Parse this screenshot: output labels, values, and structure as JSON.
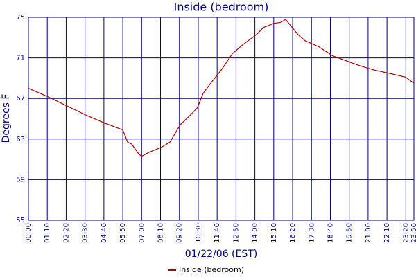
{
  "chart_data": {
    "type": "line",
    "title": "Inside (bedroom)",
    "x_label": "01/22/06 (EST)",
    "y_label": "Degrees F",
    "xlim": [
      0,
      1430
    ],
    "xticks": [
      {
        "value": 0,
        "label": "00:00"
      },
      {
        "value": 70,
        "label": "01:10"
      },
      {
        "value": 140,
        "label": "02:20"
      },
      {
        "value": 210,
        "label": "03:30"
      },
      {
        "value": 280,
        "label": "04:40"
      },
      {
        "value": 350,
        "label": "05:50"
      },
      {
        "value": 420,
        "label": "07:00"
      },
      {
        "value": 490,
        "label": "08:10"
      },
      {
        "value": 560,
        "label": "09:20"
      },
      {
        "value": 630,
        "label": "10:30"
      },
      {
        "value": 700,
        "label": "11:40"
      },
      {
        "value": 770,
        "label": "12:50"
      },
      {
        "value": 840,
        "label": "14:00"
      },
      {
        "value": 910,
        "label": "15:10"
      },
      {
        "value": 980,
        "label": "16:20"
      },
      {
        "value": 1050,
        "label": "17:30"
      },
      {
        "value": 1120,
        "label": "18:40"
      },
      {
        "value": 1190,
        "label": "19:50"
      },
      {
        "value": 1260,
        "label": "21:00"
      },
      {
        "value": 1330,
        "label": "22:10"
      },
      {
        "value": 1400,
        "label": "23:20"
      },
      {
        "value": 1430,
        "label": "23:50"
      }
    ],
    "ylim": [
      55,
      75
    ],
    "yticks": [
      55,
      59,
      63,
      67,
      71,
      75
    ],
    "grid": true,
    "legend": "bottom",
    "series": [
      {
        "name": "Inside (bedroom)",
        "color": "#aa0000",
        "x": [
          0,
          70,
          140,
          210,
          280,
          350,
          368,
          383,
          410,
          420,
          448,
          494,
          525,
          563,
          602,
          627,
          648,
          679,
          718,
          756,
          795,
          846,
          872,
          910,
          936,
          954,
          975,
          1000,
          1026,
          1077,
          1129,
          1180,
          1232,
          1283,
          1335,
          1399,
          1430
        ],
        "values": [
          68.0,
          67.2,
          66.3,
          65.4,
          64.6,
          63.9,
          62.7,
          62.5,
          61.5,
          61.3,
          61.7,
          62.2,
          62.7,
          64.4,
          65.4,
          66.1,
          67.5,
          68.6,
          69.9,
          71.4,
          72.3,
          73.3,
          74.0,
          74.4,
          74.5,
          74.8,
          74.1,
          73.3,
          72.7,
          72.1,
          71.2,
          70.7,
          70.2,
          69.8,
          69.5,
          69.1,
          68.5
        ]
      }
    ]
  }
}
